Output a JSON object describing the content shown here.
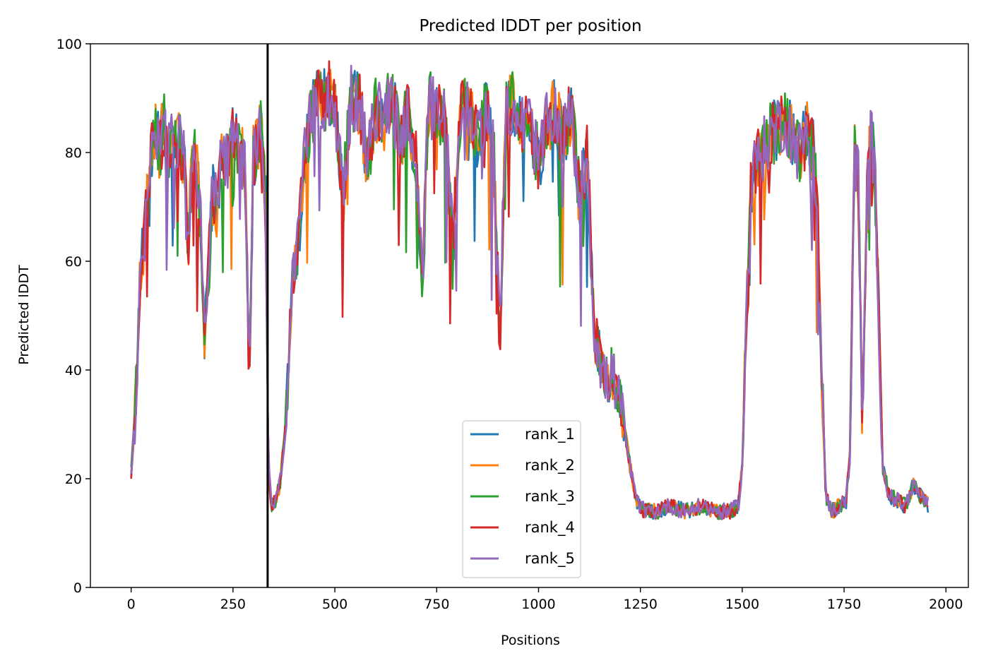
{
  "chart_data": {
    "type": "line",
    "title": "Predicted lDDT per position",
    "xlabel": "Positions",
    "ylabel": "Predicted lDDT",
    "xlim": [
      -100,
      2055
    ],
    "ylim": [
      0,
      100
    ],
    "x_ticks": [
      0,
      250,
      500,
      750,
      1000,
      1250,
      1500,
      1750,
      2000
    ],
    "y_ticks": [
      0,
      20,
      40,
      60,
      80,
      100
    ],
    "grid": false,
    "legend_position": "lower-center",
    "vertical_line": {
      "x": 335,
      "color": "#000000"
    },
    "profile": [
      [
        0,
        21
      ],
      [
        8,
        30
      ],
      [
        15,
        40
      ],
      [
        22,
        58
      ],
      [
        30,
        62
      ],
      [
        40,
        72
      ],
      [
        50,
        80
      ],
      [
        60,
        84
      ],
      [
        70,
        80
      ],
      [
        80,
        86
      ],
      [
        90,
        79
      ],
      [
        100,
        83
      ],
      [
        110,
        80
      ],
      [
        120,
        82
      ],
      [
        130,
        78
      ],
      [
        140,
        62
      ],
      [
        150,
        80
      ],
      [
        160,
        77
      ],
      [
        170,
        69
      ],
      [
        180,
        47
      ],
      [
        190,
        58
      ],
      [
        200,
        73
      ],
      [
        210,
        70
      ],
      [
        220,
        77
      ],
      [
        230,
        80
      ],
      [
        240,
        78
      ],
      [
        250,
        83
      ],
      [
        260,
        81
      ],
      [
        270,
        80
      ],
      [
        280,
        77
      ],
      [
        290,
        37
      ],
      [
        300,
        79
      ],
      [
        310,
        82
      ],
      [
        320,
        84
      ],
      [
        330,
        70
      ],
      [
        337,
        22
      ],
      [
        345,
        15
      ],
      [
        355,
        16
      ],
      [
        365,
        19
      ],
      [
        380,
        30
      ],
      [
        395,
        55
      ],
      [
        410,
        62
      ],
      [
        425,
        78
      ],
      [
        440,
        86
      ],
      [
        455,
        90
      ],
      [
        470,
        89
      ],
      [
        485,
        91
      ],
      [
        500,
        88
      ],
      [
        520,
        72
      ],
      [
        540,
        90
      ],
      [
        560,
        89
      ],
      [
        580,
        78
      ],
      [
        600,
        88
      ],
      [
        620,
        86
      ],
      [
        640,
        91
      ],
      [
        660,
        82
      ],
      [
        680,
        88
      ],
      [
        700,
        78
      ],
      [
        715,
        55
      ],
      [
        730,
        90
      ],
      [
        750,
        87
      ],
      [
        770,
        86
      ],
      [
        790,
        63
      ],
      [
        810,
        89
      ],
      [
        830,
        88
      ],
      [
        850,
        82
      ],
      [
        870,
        88
      ],
      [
        890,
        80
      ],
      [
        905,
        45
      ],
      [
        920,
        88
      ],
      [
        940,
        89
      ],
      [
        960,
        85
      ],
      [
        980,
        86
      ],
      [
        1000,
        78
      ],
      [
        1020,
        85
      ],
      [
        1040,
        88
      ],
      [
        1060,
        82
      ],
      [
        1080,
        88
      ],
      [
        1100,
        72
      ],
      [
        1120,
        80
      ],
      [
        1135,
        48
      ],
      [
        1150,
        42
      ],
      [
        1165,
        37
      ],
      [
        1180,
        40
      ],
      [
        1195,
        35
      ],
      [
        1210,
        30
      ],
      [
        1225,
        22
      ],
      [
        1240,
        16
      ],
      [
        1260,
        14
      ],
      [
        1290,
        14
      ],
      [
        1320,
        15
      ],
      [
        1360,
        14
      ],
      [
        1400,
        15
      ],
      [
        1440,
        14
      ],
      [
        1470,
        14
      ],
      [
        1490,
        15
      ],
      [
        1500,
        22
      ],
      [
        1510,
        50
      ],
      [
        1520,
        72
      ],
      [
        1535,
        79
      ],
      [
        1550,
        80
      ],
      [
        1565,
        83
      ],
      [
        1580,
        84
      ],
      [
        1600,
        86
      ],
      [
        1620,
        84
      ],
      [
        1640,
        80
      ],
      [
        1660,
        84
      ],
      [
        1675,
        80
      ],
      [
        1685,
        68
      ],
      [
        1695,
        40
      ],
      [
        1705,
        17
      ],
      [
        1720,
        14
      ],
      [
        1740,
        15
      ],
      [
        1755,
        16
      ],
      [
        1765,
        25
      ],
      [
        1775,
        80
      ],
      [
        1785,
        75
      ],
      [
        1795,
        28
      ],
      [
        1805,
        70
      ],
      [
        1815,
        83
      ],
      [
        1825,
        78
      ],
      [
        1835,
        50
      ],
      [
        1845,
        22
      ],
      [
        1860,
        17
      ],
      [
        1880,
        16
      ],
      [
        1900,
        15
      ],
      [
        1920,
        19
      ],
      [
        1935,
        17
      ],
      [
        1950,
        16
      ],
      [
        1958,
        15
      ]
    ],
    "series": [
      {
        "name": "rank_1",
        "color": "#1f77b4"
      },
      {
        "name": "rank_2",
        "color": "#ff7f0e"
      },
      {
        "name": "rank_3",
        "color": "#2ca02c"
      },
      {
        "name": "rank_4",
        "color": "#d62728"
      },
      {
        "name": "rank_5",
        "color": "#9467bd"
      }
    ]
  }
}
